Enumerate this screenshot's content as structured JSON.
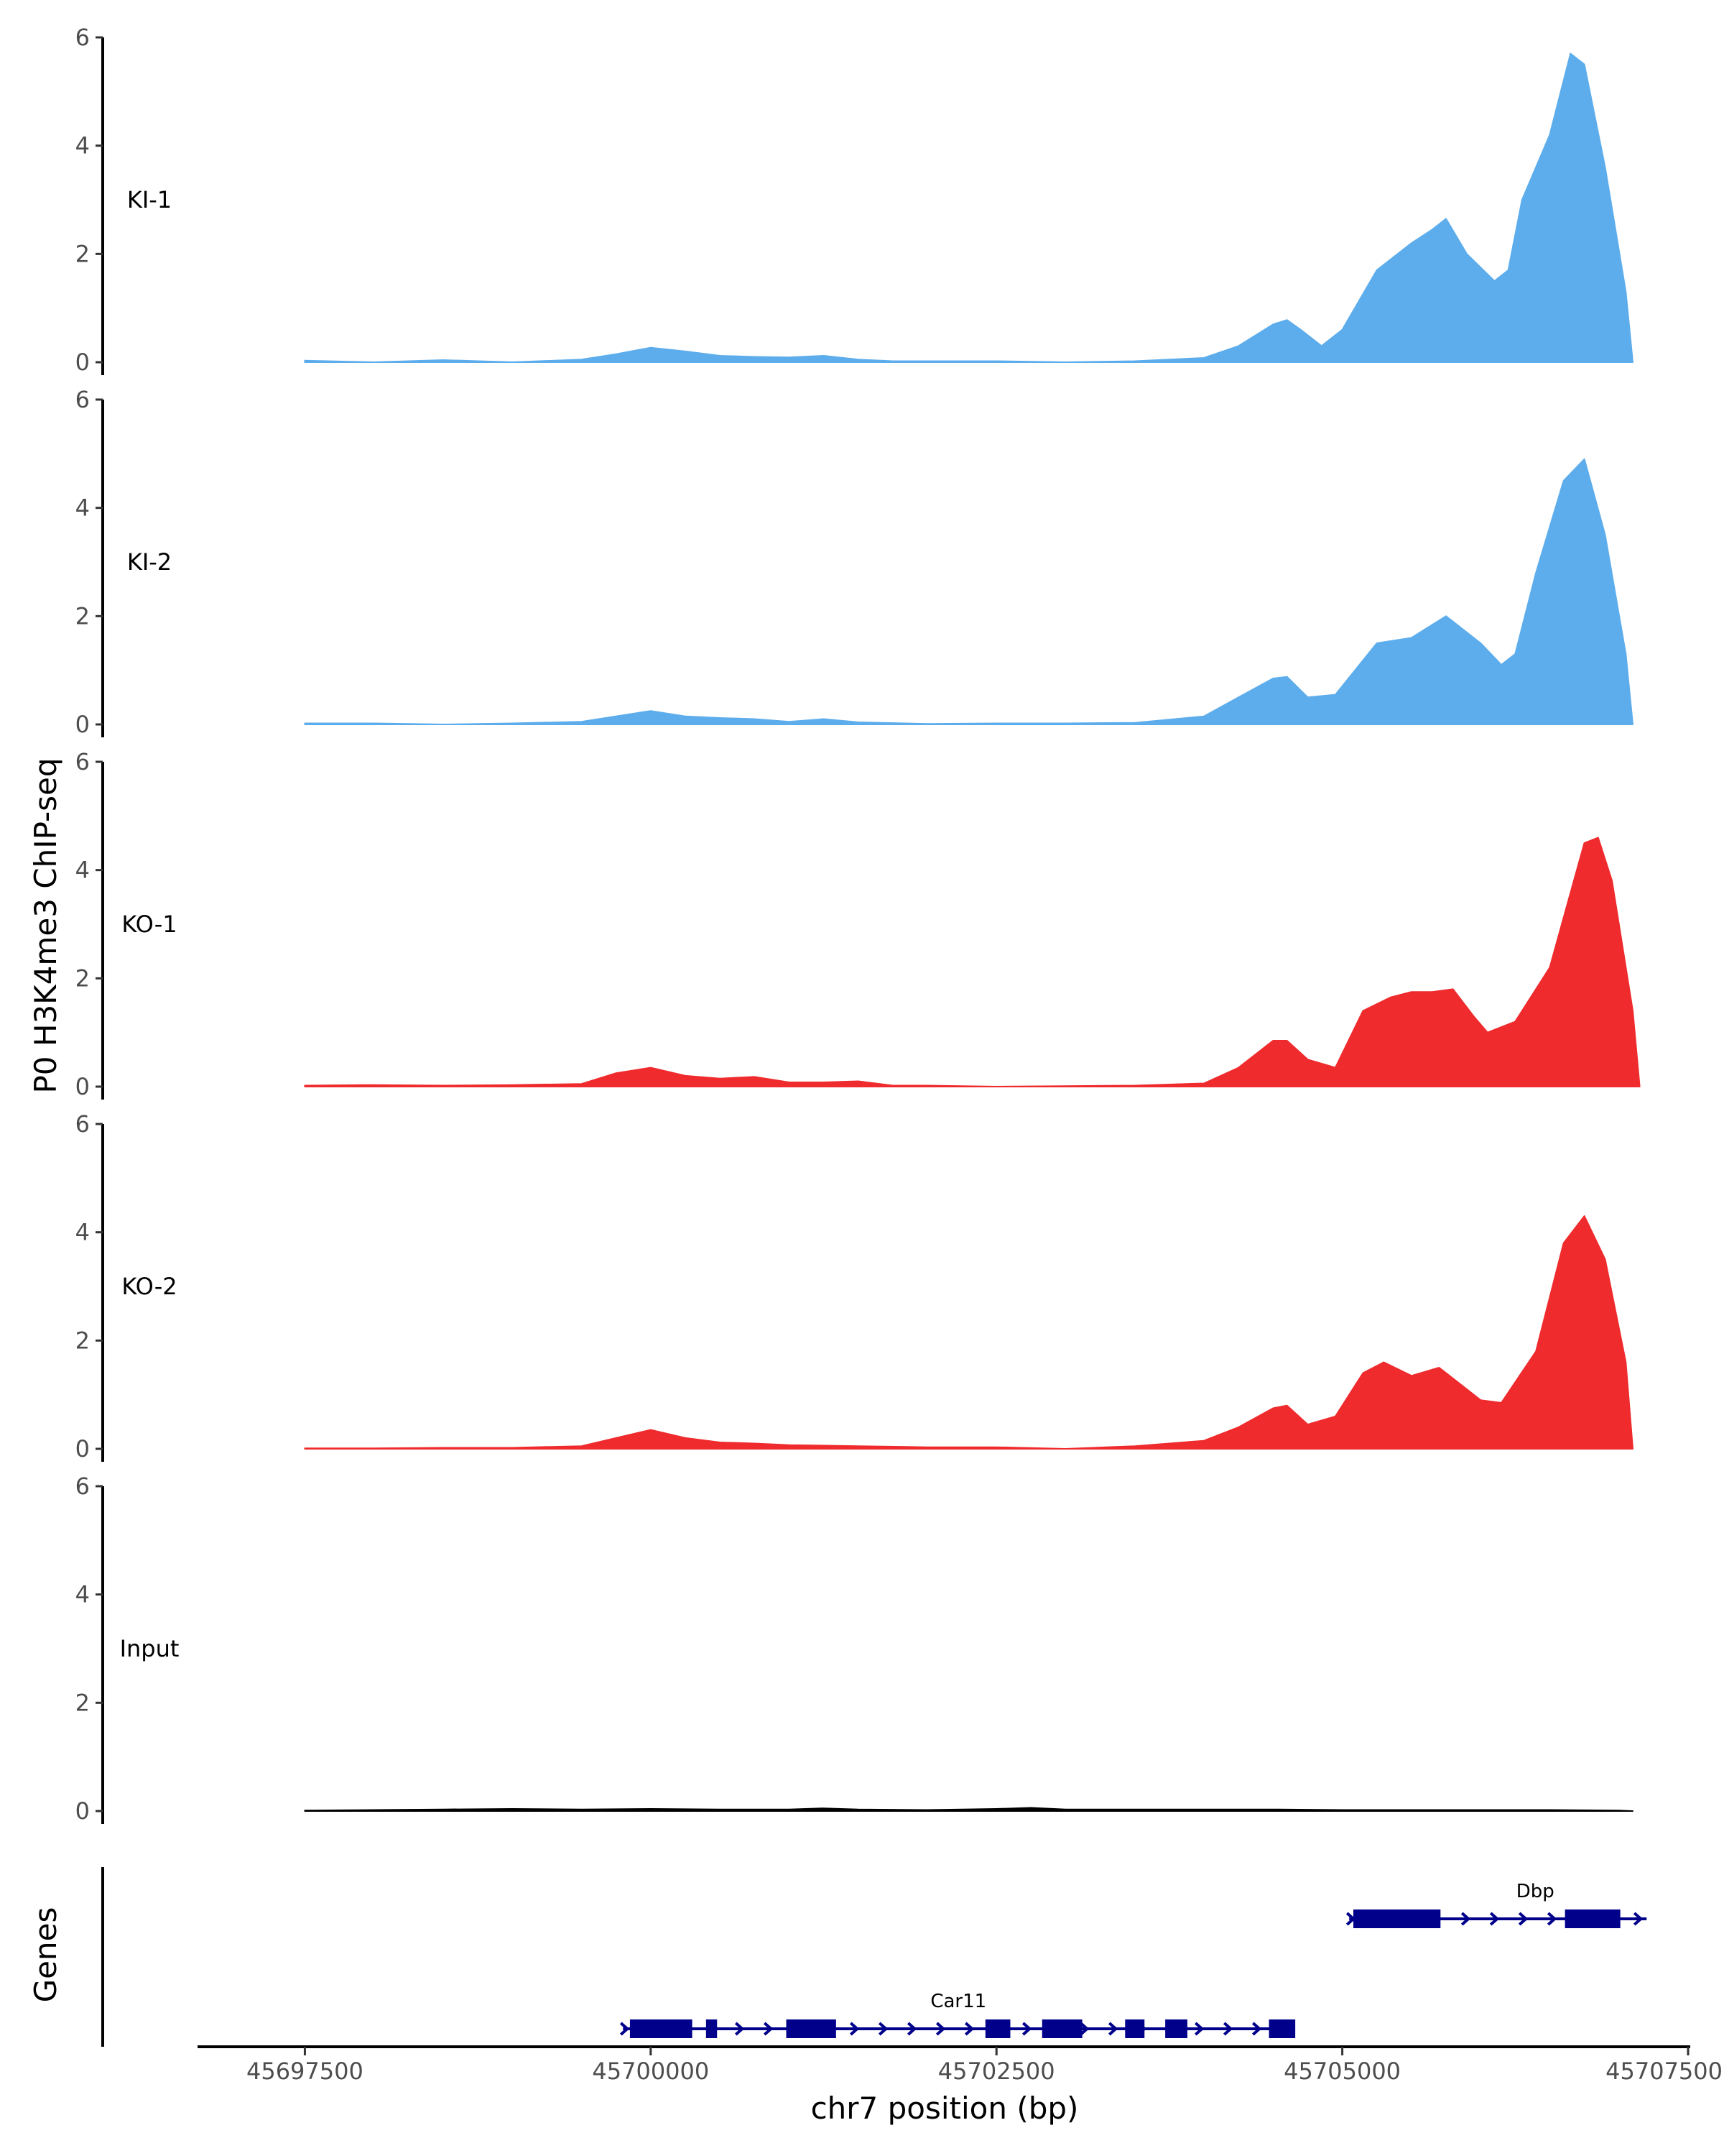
{
  "chart_data": {
    "type": "area",
    "ylabel": "P0 H3K4me3 ChIP-seq",
    "xlabel": "chr7 position (bp)",
    "genes_label": "Genes",
    "ylim": [
      0,
      6
    ],
    "yticks": [
      0,
      2,
      4,
      6
    ],
    "xlim": [
      45696750,
      45707500
    ],
    "xticks": [
      45697500,
      45700000,
      45702500,
      45705000,
      45707500
    ],
    "xtick_labels": [
      "45697500",
      "45700000",
      "45702500",
      "45705000",
      "45707500"
    ],
    "grid": false,
    "tracks": [
      {
        "name": "KI-1",
        "color": "#5DADEC",
        "points": [
          [
            45697500,
            0.03
          ],
          [
            45698000,
            0.0
          ],
          [
            45698500,
            0.04
          ],
          [
            45699000,
            0.0
          ],
          [
            45699500,
            0.05
          ],
          [
            45699750,
            0.15
          ],
          [
            45700000,
            0.27
          ],
          [
            45700250,
            0.2
          ],
          [
            45700500,
            0.12
          ],
          [
            45700750,
            0.1
          ],
          [
            45701000,
            0.09
          ],
          [
            45701250,
            0.12
          ],
          [
            45701500,
            0.05
          ],
          [
            45701750,
            0.02
          ],
          [
            45702000,
            0.02
          ],
          [
            45702500,
            0.02
          ],
          [
            45703000,
            0.0
          ],
          [
            45703500,
            0.02
          ],
          [
            45704000,
            0.08
          ],
          [
            45704250,
            0.3
          ],
          [
            45704500,
            0.7
          ],
          [
            45704600,
            0.78
          ],
          [
            45704700,
            0.6
          ],
          [
            45704850,
            0.3
          ],
          [
            45705000,
            0.6
          ],
          [
            45705250,
            1.7
          ],
          [
            45705500,
            2.2
          ],
          [
            45705650,
            2.45
          ],
          [
            45705750,
            2.65
          ],
          [
            45705900,
            2.0
          ],
          [
            45706100,
            1.5
          ],
          [
            45706200,
            1.7
          ],
          [
            45706300,
            3.0
          ],
          [
            45706500,
            4.2
          ],
          [
            45706650,
            5.7
          ],
          [
            45706750,
            5.5
          ],
          [
            45706900,
            3.6
          ],
          [
            45707050,
            1.3
          ],
          [
            45707100,
            0.0
          ]
        ]
      },
      {
        "name": "KI-2",
        "color": "#5DADEC",
        "points": [
          [
            45697500,
            0.02
          ],
          [
            45698000,
            0.02
          ],
          [
            45698500,
            0.0
          ],
          [
            45699000,
            0.02
          ],
          [
            45699500,
            0.05
          ],
          [
            45700000,
            0.25
          ],
          [
            45700250,
            0.15
          ],
          [
            45700500,
            0.12
          ],
          [
            45700750,
            0.1
          ],
          [
            45701000,
            0.05
          ],
          [
            45701250,
            0.1
          ],
          [
            45701500,
            0.04
          ],
          [
            45702000,
            0.01
          ],
          [
            45702500,
            0.02
          ],
          [
            45703000,
            0.02
          ],
          [
            45703500,
            0.03
          ],
          [
            45704000,
            0.15
          ],
          [
            45704250,
            0.5
          ],
          [
            45704500,
            0.85
          ],
          [
            45704600,
            0.88
          ],
          [
            45704750,
            0.5
          ],
          [
            45704950,
            0.55
          ],
          [
            45705250,
            1.5
          ],
          [
            45705500,
            1.6
          ],
          [
            45705750,
            2.0
          ],
          [
            45706000,
            1.5
          ],
          [
            45706150,
            1.1
          ],
          [
            45706250,
            1.3
          ],
          [
            45706400,
            2.8
          ],
          [
            45706600,
            4.5
          ],
          [
            45706750,
            4.9
          ],
          [
            45706900,
            3.5
          ],
          [
            45707050,
            1.3
          ],
          [
            45707100,
            0.0
          ]
        ]
      },
      {
        "name": "KO-1",
        "color": "#EF2B2D",
        "points": [
          [
            45697500,
            0.02
          ],
          [
            45698000,
            0.03
          ],
          [
            45698500,
            0.02
          ],
          [
            45699000,
            0.03
          ],
          [
            45699500,
            0.05
          ],
          [
            45699750,
            0.25
          ],
          [
            45700000,
            0.35
          ],
          [
            45700250,
            0.2
          ],
          [
            45700500,
            0.15
          ],
          [
            45700750,
            0.18
          ],
          [
            45701000,
            0.08
          ],
          [
            45701250,
            0.08
          ],
          [
            45701500,
            0.1
          ],
          [
            45701750,
            0.02
          ],
          [
            45702000,
            0.02
          ],
          [
            45702500,
            0.0
          ],
          [
            45703000,
            0.01
          ],
          [
            45703500,
            0.02
          ],
          [
            45704000,
            0.06
          ],
          [
            45704250,
            0.35
          ],
          [
            45704500,
            0.85
          ],
          [
            45704600,
            0.85
          ],
          [
            45704750,
            0.5
          ],
          [
            45704950,
            0.35
          ],
          [
            45705150,
            1.4
          ],
          [
            45705350,
            1.65
          ],
          [
            45705500,
            1.75
          ],
          [
            45705650,
            1.75
          ],
          [
            45705800,
            1.8
          ],
          [
            45705950,
            1.3
          ],
          [
            45706050,
            1.0
          ],
          [
            45706250,
            1.2
          ],
          [
            45706500,
            2.2
          ],
          [
            45706750,
            4.5
          ],
          [
            45706850,
            4.6
          ],
          [
            45706950,
            3.8
          ],
          [
            45707100,
            1.4
          ],
          [
            45707150,
            0.0
          ]
        ]
      },
      {
        "name": "KO-2",
        "color": "#EF2B2D",
        "points": [
          [
            45697500,
            0.01
          ],
          [
            45698000,
            0.01
          ],
          [
            45698500,
            0.02
          ],
          [
            45699000,
            0.02
          ],
          [
            45699500,
            0.05
          ],
          [
            45699750,
            0.2
          ],
          [
            45700000,
            0.35
          ],
          [
            45700250,
            0.2
          ],
          [
            45700500,
            0.12
          ],
          [
            45700750,
            0.1
          ],
          [
            45701000,
            0.07
          ],
          [
            45701500,
            0.05
          ],
          [
            45702000,
            0.03
          ],
          [
            45702500,
            0.03
          ],
          [
            45703000,
            0.0
          ],
          [
            45703500,
            0.05
          ],
          [
            45704000,
            0.15
          ],
          [
            45704250,
            0.4
          ],
          [
            45704500,
            0.75
          ],
          [
            45704600,
            0.8
          ],
          [
            45704750,
            0.45
          ],
          [
            45704950,
            0.6
          ],
          [
            45705150,
            1.4
          ],
          [
            45705300,
            1.6
          ],
          [
            45705500,
            1.35
          ],
          [
            45705700,
            1.5
          ],
          [
            45705850,
            1.2
          ],
          [
            45706000,
            0.9
          ],
          [
            45706150,
            0.85
          ],
          [
            45706400,
            1.8
          ],
          [
            45706600,
            3.8
          ],
          [
            45706750,
            4.3
          ],
          [
            45706900,
            3.5
          ],
          [
            45707050,
            1.6
          ],
          [
            45707100,
            0.0
          ]
        ]
      },
      {
        "name": "Input",
        "color": "#000000",
        "points": [
          [
            45697500,
            0.01
          ],
          [
            45698000,
            0.02
          ],
          [
            45698500,
            0.03
          ],
          [
            45699000,
            0.04
          ],
          [
            45699500,
            0.03
          ],
          [
            45700000,
            0.04
          ],
          [
            45700500,
            0.03
          ],
          [
            45701000,
            0.03
          ],
          [
            45701250,
            0.05
          ],
          [
            45701500,
            0.03
          ],
          [
            45702000,
            0.02
          ],
          [
            45702500,
            0.04
          ],
          [
            45702750,
            0.06
          ],
          [
            45703000,
            0.03
          ],
          [
            45703500,
            0.03
          ],
          [
            45704000,
            0.03
          ],
          [
            45704500,
            0.03
          ],
          [
            45705000,
            0.02
          ],
          [
            45705500,
            0.02
          ],
          [
            45706000,
            0.02
          ],
          [
            45706500,
            0.02
          ],
          [
            45707000,
            0.01
          ],
          [
            45707100,
            0.0
          ]
        ]
      }
    ],
    "genes": {
      "color": "#00008B",
      "items": [
        {
          "name": "Car11",
          "start": 45699800,
          "end": 45704650,
          "exons": [
            [
              45699850,
              45700300
            ],
            [
              45700400,
              45700480
            ],
            [
              45700980,
              45701340
            ],
            [
              45702420,
              45702600
            ],
            [
              45702830,
              45703120
            ],
            [
              45703430,
              45703570
            ],
            [
              45703720,
              45703880
            ],
            [
              45704470,
              45704660
            ]
          ]
        },
        {
          "name": "Dbp",
          "start": 45705050,
          "end": 45707200,
          "exons": [
            [
              45705080,
              45705710
            ],
            [
              45706610,
              45707010
            ]
          ]
        }
      ]
    }
  }
}
